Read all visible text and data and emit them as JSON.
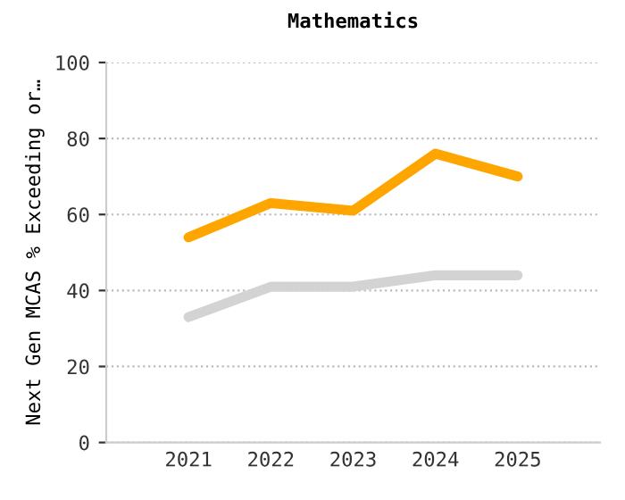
{
  "chart_data": {
    "type": "line",
    "title": "Mathematics",
    "ylabel": "Next Gen MCAS % Exceeding or…",
    "categories": [
      "2021",
      "2022",
      "2023",
      "2024",
      "2025"
    ],
    "series": [
      {
        "color": "#ffa500",
        "values": [
          54,
          63,
          61,
          76,
          70
        ]
      },
      {
        "color": "#d3d3d3",
        "values": [
          33,
          41,
          41,
          44,
          44
        ]
      }
    ],
    "ylim": [
      0,
      100
    ],
    "yticks": [
      0,
      20,
      40,
      60,
      80,
      100
    ],
    "grid": "y",
    "legend": false,
    "marker": "none",
    "line_style": "solid"
  }
}
